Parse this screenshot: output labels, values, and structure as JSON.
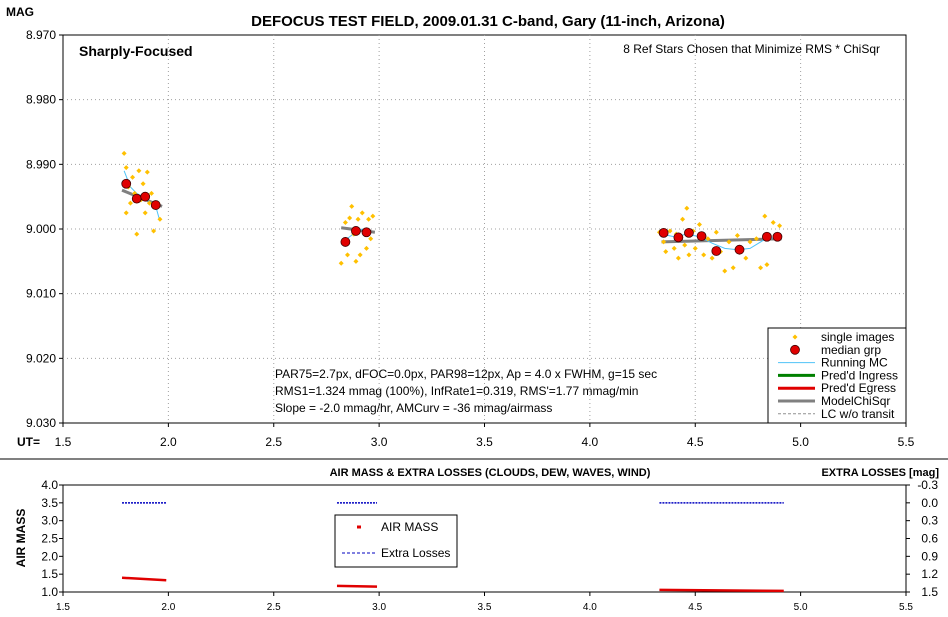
{
  "chart_data": [
    {
      "type": "scatter",
      "title": "DEFOCUS TEST FIELD, 2009.01.31 C-band, Gary (11-inch, Arizona)",
      "ylabel": "MAG",
      "xlabel": "UT=",
      "xlim": [
        1.5,
        5.5
      ],
      "ylim": [
        9.03,
        8.97
      ],
      "y_inverted": true,
      "grid": true,
      "x_ticks": [
        "1.5",
        "2.0",
        "2.5",
        "3.0",
        "3.5",
        "4.0",
        "4.5",
        "5.0",
        "5.5"
      ],
      "y_ticks": [
        "8.970",
        "8.980",
        "8.990",
        "9.000",
        "9.010",
        "9.020",
        "9.030"
      ],
      "annotation_top_left": "Sharply-Focused",
      "annotation_top_right": "8 Ref Stars Chosen that Minimize RMS * ChiSqr",
      "stats_lines": [
        "PAR75=2.7px, dFOC=0.0px, PAR98=12px, Ap = 4.0 x FWHM, g=15 sec",
        "RMS1=1.324 mmag (100%), InfRate1=0.319, RMS'=1.77 mmag/min",
        "Slope = -2.0 mmag/hr, AMCurv = -36 mmag/airmass"
      ],
      "legend_position": "bottom-right",
      "legend": [
        {
          "label": "single images",
          "style": "dot",
          "color": "#ffc000"
        },
        {
          "label": "median grp",
          "style": "bigdot",
          "color": "#e00000"
        },
        {
          "label": "Running MC",
          "style": "line",
          "color": "#4fc3f7"
        },
        {
          "label": "Pred'd Ingress",
          "style": "thick",
          "color": "#008000"
        },
        {
          "label": "Pred'd Egress",
          "style": "thick",
          "color": "#e00000"
        },
        {
          "label": "ModelChiSqr",
          "style": "thick",
          "color": "#808080"
        },
        {
          "label": "LC w/o transit",
          "style": "dash",
          "color": "#909090"
        }
      ],
      "series": [
        {
          "name": "single images",
          "color": "#ffc000",
          "points": [
            [
              1.79,
              8.9883
            ],
            [
              1.8,
              8.9905
            ],
            [
              1.8,
              8.9975
            ],
            [
              1.81,
              8.9935
            ],
            [
              1.82,
              8.996
            ],
            [
              1.83,
              8.992
            ],
            [
              1.84,
              8.9945
            ],
            [
              1.85,
              9.0008
            ],
            [
              1.86,
              8.991
            ],
            [
              1.87,
              8.9955
            ],
            [
              1.88,
              8.993
            ],
            [
              1.89,
              8.9975
            ],
            [
              1.9,
              8.9912
            ],
            [
              1.91,
              8.996
            ],
            [
              1.92,
              8.9945
            ],
            [
              1.93,
              9.0003
            ],
            [
              1.95,
              8.996
            ],
            [
              1.96,
              8.9985
            ],
            [
              2.82,
              9.0053
            ],
            [
              2.83,
              9.002
            ],
            [
              2.84,
              8.999
            ],
            [
              2.85,
              9.004
            ],
            [
              2.86,
              8.9983
            ],
            [
              2.87,
              8.9965
            ],
            [
              2.88,
              9.0008
            ],
            [
              2.89,
              9.005
            ],
            [
              2.9,
              8.9985
            ],
            [
              2.91,
              9.004
            ],
            [
              2.92,
              8.9975
            ],
            [
              2.93,
              9.0008
            ],
            [
              2.94,
              9.003
            ],
            [
              2.95,
              8.9985
            ],
            [
              2.96,
              9.0015
            ],
            [
              2.97,
              8.998
            ],
            [
              4.33,
              9.0005
            ],
            [
              4.35,
              9.002
            ],
            [
              4.36,
              9.0035
            ],
            [
              4.38,
              9.0003
            ],
            [
              4.4,
              9.003
            ],
            [
              4.41,
              9.0008
            ],
            [
              4.42,
              9.0045
            ],
            [
              4.44,
              8.9985
            ],
            [
              4.45,
              9.0025
            ],
            [
              4.46,
              8.9968
            ],
            [
              4.47,
              9.004
            ],
            [
              4.49,
              9.0003
            ],
            [
              4.5,
              9.003
            ],
            [
              4.52,
              8.9993
            ],
            [
              4.54,
              9.004
            ],
            [
              4.56,
              9.0015
            ],
            [
              4.58,
              9.0045
            ],
            [
              4.6,
              9.0005
            ],
            [
              4.62,
              9.0035
            ],
            [
              4.64,
              9.0065
            ],
            [
              4.66,
              9.002
            ],
            [
              4.68,
              9.006
            ],
            [
              4.7,
              9.001
            ],
            [
              4.72,
              9.003
            ],
            [
              4.74,
              9.0045
            ],
            [
              4.76,
              9.002
            ],
            [
              4.79,
              9.0015
            ],
            [
              4.81,
              9.006
            ],
            [
              4.83,
              8.998
            ],
            [
              4.84,
              9.0055
            ],
            [
              4.85,
              9.0015
            ],
            [
              4.87,
              8.999
            ],
            [
              4.88,
              9.001
            ],
            [
              4.9,
              8.9995
            ]
          ]
        },
        {
          "name": "median grp",
          "color": "#e00000",
          "points": [
            [
              1.8,
              8.993
            ],
            [
              1.85,
              8.9953
            ],
            [
              1.89,
              8.995
            ],
            [
              1.94,
              8.9963
            ],
            [
              2.84,
              9.002
            ],
            [
              2.89,
              9.0003
            ],
            [
              2.94,
              9.0005
            ],
            [
              4.35,
              9.0006
            ],
            [
              4.42,
              9.0013
            ],
            [
              4.47,
              9.0006
            ],
            [
              4.53,
              9.0011
            ],
            [
              4.6,
              9.0034
            ],
            [
              4.71,
              9.0032
            ],
            [
              4.84,
              9.0012
            ],
            [
              4.89,
              9.0012
            ]
          ]
        },
        {
          "name": "Running MC",
          "color": "#4fc3f7",
          "points": [
            [
              1.79,
              8.991
            ],
            [
              1.82,
              8.9935
            ],
            [
              1.85,
              8.9945
            ],
            [
              1.88,
              8.995
            ],
            [
              1.91,
              8.9958
            ],
            [
              1.94,
              8.9965
            ],
            [
              1.96,
              8.9988
            ],
            [
              2.83,
              9.002
            ],
            [
              2.86,
              9.0012
            ],
            [
              2.89,
              9.0005
            ],
            [
              2.92,
              9.0
            ],
            [
              2.96,
              9.0005
            ],
            [
              4.34,
              9.0008
            ],
            [
              4.4,
              9.0012
            ],
            [
              4.46,
              9.0008
            ],
            [
              4.52,
              9.0012
            ],
            [
              4.58,
              9.0022
            ],
            [
              4.64,
              9.003
            ],
            [
              4.7,
              9.0032
            ],
            [
              4.76,
              9.003
            ],
            [
              4.82,
              9.0018
            ],
            [
              4.89,
              9.0012
            ]
          ]
        },
        {
          "name": "ModelChiSqr",
          "color": "#808080",
          "segments": [
            [
              [
                1.78,
                8.994
              ],
              [
                1.97,
                8.9965
              ]
            ],
            [
              [
                2.82,
                8.9998
              ],
              [
                2.98,
                9.0005
              ]
            ],
            [
              [
                4.34,
                9.002
              ],
              [
                4.91,
                9.0015
              ]
            ]
          ]
        }
      ]
    },
    {
      "type": "line",
      "title": "AIR MASS & EXTRA LOSSES (CLOUDS, DEW, WAVES, WIND)",
      "ylabel": "AIR MASS",
      "y2label": "EXTRA LOSSES [mag]",
      "xlim": [
        1.5,
        5.5
      ],
      "ylim": [
        1.0,
        4.0
      ],
      "y2lim": [
        1.5,
        -0.3
      ],
      "x_ticks": [
        "1.5",
        "2.0",
        "2.5",
        "3.0",
        "3.5",
        "4.0",
        "4.5",
        "5.0",
        "5.5"
      ],
      "y_ticks": [
        "1.0",
        "1.5",
        "2.0",
        "2.5",
        "3.0",
        "3.5",
        "4.0"
      ],
      "y2_ticks": [
        "-0.3",
        "0.0",
        "0.3",
        "0.6",
        "0.9",
        "1.2",
        "1.5"
      ],
      "grid": false,
      "legend_position": "center",
      "legend": [
        {
          "label": "AIR MASS",
          "style": "dot",
          "color": "#e00000"
        },
        {
          "label": "Extra Losses",
          "style": "dash",
          "color": "#0000c0"
        }
      ],
      "series": [
        {
          "name": "AIR MASS",
          "color": "#e00000",
          "segments": [
            [
              [
                1.78,
                1.4
              ],
              [
                1.99,
                1.33
              ]
            ],
            [
              [
                2.8,
                1.17
              ],
              [
                2.99,
                1.15
              ]
            ],
            [
              [
                4.33,
                1.06
              ],
              [
                4.92,
                1.03
              ]
            ]
          ]
        },
        {
          "name": "Extra Losses",
          "color": "#0000c0",
          "segments": [
            [
              [
                1.78,
                0.0
              ],
              [
                1.99,
                0.0
              ]
            ],
            [
              [
                2.8,
                0.0
              ],
              [
                2.99,
                0.0
              ]
            ],
            [
              [
                4.33,
                0.0
              ],
              [
                4.92,
                0.0
              ]
            ]
          ]
        }
      ]
    }
  ]
}
